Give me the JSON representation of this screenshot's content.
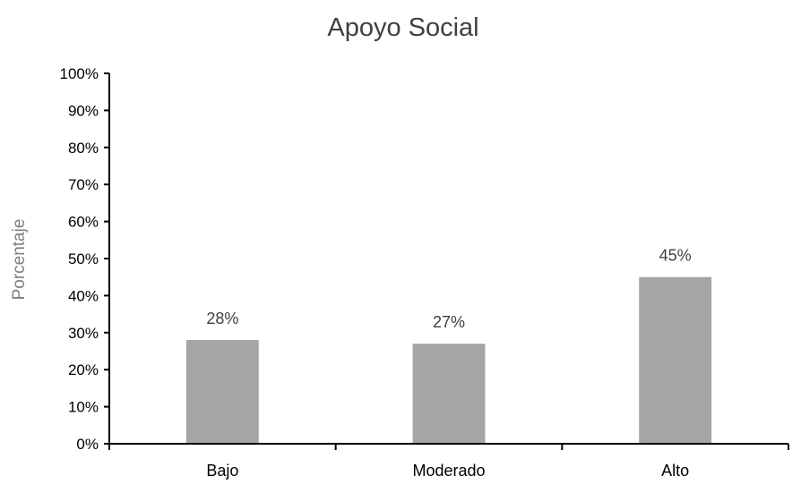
{
  "chart_data": {
    "type": "bar",
    "title": "Apoyo Social",
    "xlabel": "",
    "ylabel": "Porcentaje",
    "categories": [
      "Bajo",
      "Moderado",
      "Alto"
    ],
    "values": [
      0.28,
      0.27,
      0.45
    ],
    "data_labels": [
      "28%",
      "27%",
      "45%"
    ],
    "ylim": [
      0,
      1
    ],
    "yticks": [
      0,
      0.1,
      0.2,
      0.3,
      0.4,
      0.5,
      0.6,
      0.7,
      0.8,
      0.9,
      1.0
    ],
    "ytick_labels": [
      "0%",
      "10%",
      "20%",
      "30%",
      "40%",
      "50%",
      "60%",
      "70%",
      "80%",
      "90%",
      "100%"
    ],
    "grid": false,
    "legend": "none",
    "bar_color": "#a5a5a5",
    "axis_color": "#000000"
  }
}
